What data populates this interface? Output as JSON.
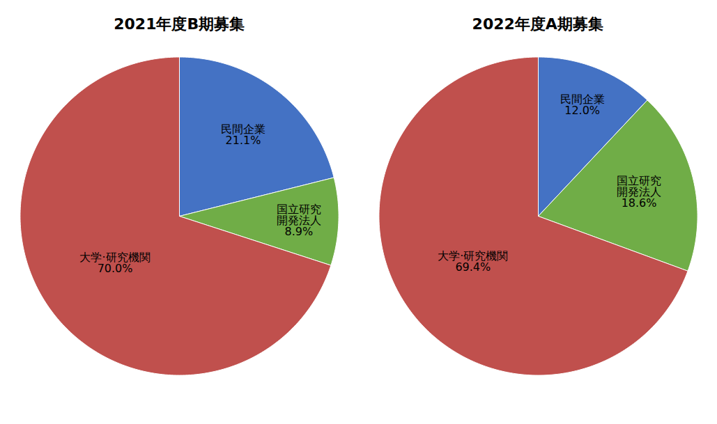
{
  "chart_data": [
    {
      "type": "pie",
      "title": "2021年度B期募集",
      "categories": [
        "民間企業",
        "国立研究\n開発法人",
        "大学·研究機関"
      ],
      "values": [
        21.1,
        8.9,
        70.0
      ],
      "value_labels": [
        "21.1%",
        "8.9%",
        "70.0%"
      ],
      "colors": [
        "#4472C4",
        "#70AD47",
        "#C0504D"
      ],
      "data_labels": true
    },
    {
      "type": "pie",
      "title": "2022年度A期募集",
      "categories": [
        "民間企業",
        "国立研究\n開発法人",
        "大学·研究機関"
      ],
      "values": [
        12.0,
        18.6,
        69.4
      ],
      "value_labels": [
        "12.0%",
        "18.6%",
        "69.4%"
      ],
      "colors": [
        "#4472C4",
        "#70AD47",
        "#C0504D"
      ],
      "data_labels": true
    }
  ]
}
